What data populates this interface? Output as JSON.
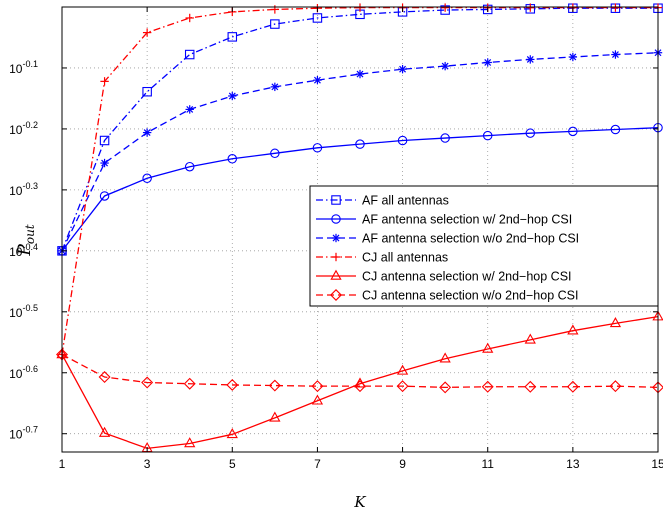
{
  "chart_data": {
    "type": "line",
    "xlabel": "K",
    "ylabel_main": "P",
    "ylabel_sub": "out",
    "xlim": [
      1,
      15
    ],
    "xticks": [
      "1",
      "3",
      "5",
      "7",
      "9",
      "11",
      "13",
      "15"
    ],
    "ylim": [
      -0.73,
      0
    ],
    "yscale": "log10",
    "yticks": [
      {
        "value": -0.1,
        "label": "-0.1"
      },
      {
        "value": -0.2,
        "label": "-0.2"
      },
      {
        "value": -0.3,
        "label": "-0.3"
      },
      {
        "value": -0.4,
        "label": "-0.4"
      },
      {
        "value": -0.5,
        "label": "-0.5"
      },
      {
        "value": -0.6,
        "label": "-0.6"
      },
      {
        "value": -0.7,
        "label": "-0.7"
      }
    ],
    "ytick_base": "10",
    "grid": true,
    "legend_position": "right-center",
    "x": [
      1,
      2,
      3,
      4,
      5,
      6,
      7,
      8,
      9,
      10,
      11,
      12,
      13,
      14,
      15
    ],
    "series": [
      {
        "name": "AF all antennas",
        "color": "#0000ff",
        "dash": "dashdot",
        "marker": "square",
        "values": [
          -0.4,
          -0.219,
          -0.139,
          -0.078,
          -0.049,
          -0.028,
          -0.018,
          -0.012,
          -0.008,
          -0.005,
          -0.004,
          -0.003,
          -0.002,
          -0.002,
          -0.002
        ]
      },
      {
        "name": "AF antenna selection w/ 2nd−hop CSI",
        "color": "#0000ff",
        "dash": "solid",
        "marker": "circle",
        "values": [
          -0.4,
          -0.31,
          -0.281,
          -0.262,
          -0.249,
          -0.24,
          -0.231,
          -0.225,
          -0.219,
          -0.215,
          -0.211,
          -0.207,
          -0.204,
          -0.201,
          -0.198
        ]
      },
      {
        "name": "AF antenna selection w/o 2nd−hop CSI",
        "color": "#0000ff",
        "dash": "dashed",
        "marker": "star",
        "values": [
          -0.4,
          -0.256,
          -0.206,
          -0.168,
          -0.146,
          -0.131,
          -0.12,
          -0.11,
          -0.102,
          -0.097,
          -0.091,
          -0.086,
          -0.082,
          -0.078,
          -0.075
        ]
      },
      {
        "name": "CJ all antennas",
        "color": "#ff0000",
        "dash": "dashdot",
        "marker": "plus",
        "values": [
          -0.57,
          -0.122,
          -0.042,
          -0.018,
          -0.008,
          -0.004,
          -0.002,
          -0.001,
          -0.001,
          -0.001,
          -0.001,
          -0.001,
          -0.001,
          -0.001,
          -0.001
        ]
      },
      {
        "name": "CJ antenna selection w/ 2nd−hop CSI",
        "color": "#ff0000",
        "dash": "solid",
        "marker": "triangle",
        "values": [
          -0.57,
          -0.699,
          -0.724,
          -0.716,
          -0.701,
          -0.674,
          -0.646,
          -0.618,
          -0.597,
          -0.577,
          -0.561,
          -0.546,
          -0.531,
          -0.519,
          -0.508
        ]
      },
      {
        "name": "CJ antenna selection w/o 2nd−hop CSI",
        "color": "#ff0000",
        "dash": "dashed",
        "marker": "diamond",
        "values": [
          -0.57,
          -0.607,
          -0.616,
          -0.618,
          -0.62,
          -0.621,
          -0.622,
          -0.622,
          -0.622,
          -0.624,
          -0.623,
          -0.623,
          -0.623,
          -0.622,
          -0.624
        ]
      }
    ]
  }
}
